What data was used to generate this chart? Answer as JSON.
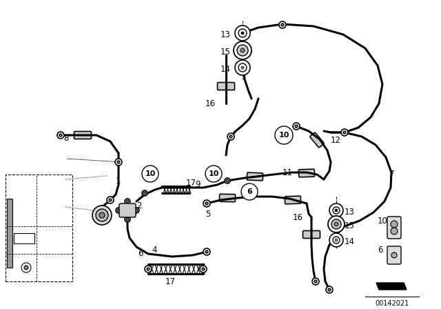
{
  "bg_color": "#ffffff",
  "line_color": "#000000",
  "diagram_id": "00142021",
  "fig_width": 6.4,
  "fig_height": 4.48,
  "dpi": 100
}
